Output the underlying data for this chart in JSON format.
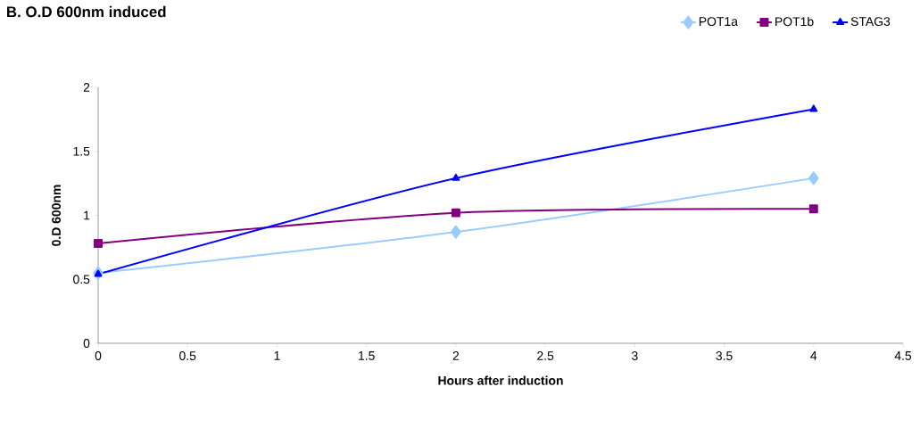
{
  "chart_data": {
    "type": "line",
    "title": "B. O.D 600nm induced",
    "xlabel": "Hours after induction",
    "ylabel": "0.D 600nm",
    "x": [
      0,
      2,
      4
    ],
    "series": [
      {
        "name": "POT1a",
        "color": "#99ccff",
        "marker": "diamond",
        "values": [
          0.55,
          0.87,
          1.29
        ]
      },
      {
        "name": "POT1b",
        "color": "#800080",
        "marker": "square",
        "values": [
          0.78,
          1.02,
          1.05
        ]
      },
      {
        "name": "STAG3",
        "color": "#0000ff",
        "marker": "triangle",
        "values": [
          0.54,
          1.29,
          1.83
        ]
      }
    ],
    "xlim": [
      0,
      4.5
    ],
    "xticks": [
      0,
      0.5,
      1,
      1.5,
      2,
      2.5,
      3,
      3.5,
      4,
      4.5
    ],
    "ylim": [
      0,
      2
    ],
    "yticks": [
      0,
      0.5,
      1,
      1.5,
      2
    ],
    "grid": false,
    "legend": "top right",
    "line_style": "solid"
  }
}
